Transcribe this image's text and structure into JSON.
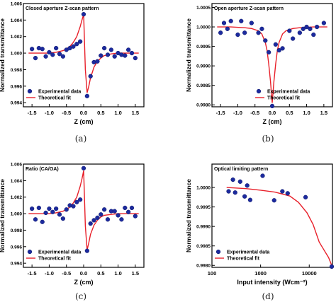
{
  "subcaptions": [
    "(a)",
    "(b)",
    "(c)",
    "(d)"
  ],
  "colors": {
    "marker_fill": "#1c2a9e",
    "marker_stroke": "#101a6a",
    "fit_line": "#e8202a",
    "frame": "#000000",
    "text": "#000000"
  },
  "chart_data": [
    {
      "type": "scatter",
      "title": "Closed aperture Z-scan pattern",
      "xlabel": "Z (cm)",
      "ylabel": "Normalized transmittance",
      "xlim": [
        -1.75,
        1.75
      ],
      "ylim": [
        0.9935,
        1.006
      ],
      "xticks": [
        -1.5,
        -1.0,
        -0.5,
        0.0,
        0.5,
        1.0,
        1.5
      ],
      "xtick_labels": [
        "-1.5",
        "-1.0",
        "-0.5",
        "0.0",
        "0.5",
        "1.0",
        "1.5"
      ],
      "yticks": [
        0.994,
        0.996,
        0.998,
        1.0,
        1.002,
        1.004,
        1.006
      ],
      "ytick_labels": [
        "0.994",
        "0.996",
        "0.998",
        "1.000",
        "1.002",
        "1.004",
        "1.006"
      ],
      "legend": {
        "placement": "bottom-left",
        "entries": [
          "Experimental data",
          "Theoretical fit"
        ]
      },
      "series": [
        {
          "name": "Experimental data",
          "kind": "markers",
          "x": [
            -1.5,
            -1.4,
            -1.3,
            -1.2,
            -1.1,
            -1.0,
            -0.9,
            -0.8,
            -0.7,
            -0.6,
            -0.5,
            -0.4,
            -0.3,
            -0.2,
            -0.1,
            0.0,
            0.1,
            0.2,
            0.3,
            0.4,
            0.5,
            0.6,
            0.7,
            0.8,
            0.9,
            1.0,
            1.1,
            1.2,
            1.3,
            1.4,
            1.5
          ],
          "y": [
            1.0005,
            0.9994,
            1.0006,
            1.0005,
            0.9996,
            1.0001,
            0.9998,
            1.0006,
            0.9999,
            0.9996,
            1.0004,
            1.0006,
            1.0008,
            1.0011,
            1.0014,
            1.0047,
            0.9948,
            0.9972,
            0.9989,
            0.999,
            0.9997,
            1.0006,
            0.9998,
            1.0004,
            0.9996,
            1.0,
            0.9998,
            0.9997,
            1.0004,
            1.0,
            0.9994
          ]
        },
        {
          "name": "Theoretical fit",
          "kind": "line",
          "x": [
            -1.6,
            -1.4,
            -1.2,
            -1.0,
            -0.8,
            -0.6,
            -0.5,
            -0.4,
            -0.3,
            -0.2,
            -0.1,
            -0.05,
            0.0,
            0.05,
            0.1,
            0.15,
            0.2,
            0.3,
            0.4,
            0.5,
            0.6,
            0.8,
            1.0,
            1.2,
            1.4,
            1.6
          ],
          "y": [
            1.0,
            1.0,
            1.0,
            1.0,
            1.0001,
            1.0003,
            1.0005,
            1.0008,
            1.0013,
            1.002,
            1.0032,
            1.004,
            1.0047,
            0.998,
            0.9952,
            0.996,
            0.997,
            0.9983,
            0.999,
            0.9994,
            0.9997,
            0.9999,
            1.0,
            1.0,
            1.0,
            1.0
          ]
        }
      ]
    },
    {
      "type": "scatter",
      "title": "Open aperture Z-scan pattern",
      "xlabel": "Z (cm)",
      "ylabel": "Normalized transmittance",
      "xlim": [
        -1.75,
        1.75
      ],
      "ylim": [
        0.99795,
        1.0006
      ],
      "xticks": [
        -1.5,
        -1.0,
        -0.5,
        0.0,
        0.5,
        1.0,
        1.5
      ],
      "xtick_labels": [
        "-1.5",
        "-1.0",
        "-0.5",
        "0.0",
        "0.5",
        "1.0",
        "1.5"
      ],
      "yticks": [
        0.998,
        0.9985,
        0.999,
        0.9995,
        1.0,
        1.0005
      ],
      "ytick_labels": [
        "0.9980",
        "0.9985",
        "0.9990",
        "0.9995",
        "1.0000",
        "1.0005"
      ],
      "legend": {
        "placement": "bottom-right",
        "entries": [
          "Experimental data",
          "Theoretical fit"
        ]
      },
      "series": [
        {
          "name": "Experimental data",
          "kind": "markers",
          "x": [
            -1.5,
            -1.4,
            -1.3,
            -1.2,
            -1.0,
            -0.9,
            -0.8,
            -0.6,
            -0.4,
            -0.3,
            -0.2,
            -0.1,
            0.0,
            0.1,
            0.2,
            0.3,
            0.5,
            0.6,
            0.8,
            0.9,
            1.0,
            1.1,
            1.2,
            1.3,
            1.5
          ],
          "y": [
            0.99985,
            1.0001,
            0.99995,
            1.00015,
            0.9998,
            1.00015,
            0.99985,
            1.0001,
            0.99985,
            0.99995,
            0.99965,
            0.99935,
            0.99797,
            0.99955,
            0.9994,
            0.99945,
            0.9999,
            0.9997,
            0.99985,
            0.99995,
            1.0,
            0.99995,
            0.9998,
            1.0,
            1.0001
          ]
        },
        {
          "name": "Theoretical fit",
          "kind": "line",
          "x": [
            -1.6,
            -1.2,
            -0.8,
            -0.6,
            -0.4,
            -0.3,
            -0.2,
            -0.15,
            -0.1,
            -0.05,
            0.0,
            0.05,
            0.1,
            0.15,
            0.2,
            0.3,
            0.4,
            0.6,
            0.8,
            1.2,
            1.6
          ],
          "y": [
            1.0,
            1.0,
            0.99998,
            0.99996,
            0.9999,
            0.99982,
            0.9996,
            0.9994,
            0.99905,
            0.9986,
            0.99805,
            0.9986,
            0.99905,
            0.9994,
            0.9996,
            0.99982,
            0.9999,
            0.99996,
            0.99998,
            1.0,
            1.0
          ]
        }
      ]
    },
    {
      "type": "scatter",
      "title": "Ratio (CA/OA)",
      "xlabel": "Z (cm)",
      "ylabel": "Normalized transmittance",
      "xlim": [
        -1.75,
        1.75
      ],
      "ylim": [
        0.9935,
        1.006
      ],
      "xticks": [
        -1.5,
        -1.0,
        -0.5,
        0.0,
        0.5,
        1.0,
        1.5
      ],
      "xtick_labels": [
        "-1.5",
        "-1.0",
        "-0.5",
        "0.0",
        "0.5",
        "1.0",
        "1.5"
      ],
      "yticks": [
        0.994,
        0.996,
        0.998,
        1.0,
        1.002,
        1.004,
        1.006
      ],
      "ytick_labels": [
        "0.994",
        "0.996",
        "0.998",
        "1.000",
        "1.002",
        "1.004",
        "1.006"
      ],
      "legend": {
        "placement": "bottom-left",
        "entries": [
          "Experimental data",
          "Theoretical fit"
        ]
      },
      "series": [
        {
          "name": "Experimental data",
          "kind": "markers",
          "x": [
            -1.5,
            -1.4,
            -1.3,
            -1.2,
            -1.1,
            -1.0,
            -0.9,
            -0.8,
            -0.7,
            -0.6,
            -0.5,
            -0.4,
            -0.3,
            -0.2,
            -0.1,
            0.0,
            0.1,
            0.2,
            0.3,
            0.4,
            0.5,
            0.6,
            0.7,
            0.8,
            0.9,
            1.0,
            1.1,
            1.2,
            1.3,
            1.4,
            1.5
          ],
          "y": [
            1.0006,
            0.9993,
            1.0007,
            0.999,
            1.0001,
            1.0006,
            1.0002,
            1.0006,
            0.9999,
            0.9994,
            1.0005,
            1.001,
            1.0009,
            1.0014,
            1.0017,
            1.0055,
            0.9955,
            0.9988,
            0.9992,
            0.9995,
            0.9999,
            1.0005,
            0.9993,
            1.0003,
            1.0003,
            0.9998,
            0.9993,
            1.0007,
            1.0002,
            1.0007,
            0.9997
          ]
        },
        {
          "name": "Theoretical fit",
          "kind": "line",
          "x": [
            -1.6,
            -1.4,
            -1.2,
            -1.0,
            -0.8,
            -0.6,
            -0.5,
            -0.4,
            -0.3,
            -0.2,
            -0.1,
            -0.05,
            0.0,
            0.05,
            0.1,
            0.15,
            0.2,
            0.3,
            0.4,
            0.5,
            0.6,
            0.8,
            1.0,
            1.2,
            1.4,
            1.6
          ],
          "y": [
            1.0,
            1.0,
            1.0,
            1.0,
            1.0001,
            1.0003,
            1.0005,
            1.0008,
            1.0013,
            1.002,
            1.0033,
            1.0042,
            1.0052,
            0.9985,
            0.9956,
            0.9965,
            0.9975,
            0.9986,
            0.9992,
            0.9996,
            0.9998,
            0.9999,
            1.0,
            1.0,
            1.0,
            1.0
          ]
        }
      ]
    },
    {
      "type": "scatter",
      "title": "Optical limiting pattern",
      "xlabel": "Input intensity (Wcm⁻²)",
      "ylabel": "Normalized transmittance",
      "xscale": "log",
      "xlim": [
        100,
        30000
      ],
      "ylim": [
        0.99795,
        1.0006
      ],
      "xticks": [
        100,
        1000,
        10000
      ],
      "xtick_labels": [
        "100",
        "1000",
        "10000"
      ],
      "yticks": [
        0.998,
        0.9985,
        0.999,
        0.9995,
        1.0
      ],
      "ytick_labels": [
        "0.9980",
        "0.9985",
        "0.9990",
        "0.9995",
        "1.0000"
      ],
      "legend": {
        "placement": "bottom-left",
        "entries": [
          "Experimental data",
          "Theoretical fit"
        ]
      },
      "series": [
        {
          "name": "Experimental data",
          "kind": "markers",
          "x": [
            220,
            270,
            300,
            380,
            470,
            530,
            610,
            1100,
            1900,
            2800,
            3600,
            8400,
            29000
          ],
          "y": [
            0.9999,
            1.0002,
            0.99987,
            1.00015,
            0.99977,
            1.00005,
            0.99968,
            1.0003,
            0.99967,
            0.9999,
            0.99985,
            0.99975,
            0.99797
          ]
        },
        {
          "name": "Theoretical fit",
          "kind": "line",
          "x": [
            200,
            500,
            1000,
            2000,
            4000,
            6000,
            9000,
            12000,
            16000,
            20000,
            25000,
            29000
          ],
          "y": [
            1.0,
            0.99997,
            0.99993,
            0.99988,
            0.99978,
            0.99962,
            0.99935,
            0.99905,
            0.9986,
            0.9984,
            0.9982,
            0.998
          ]
        }
      ]
    }
  ]
}
